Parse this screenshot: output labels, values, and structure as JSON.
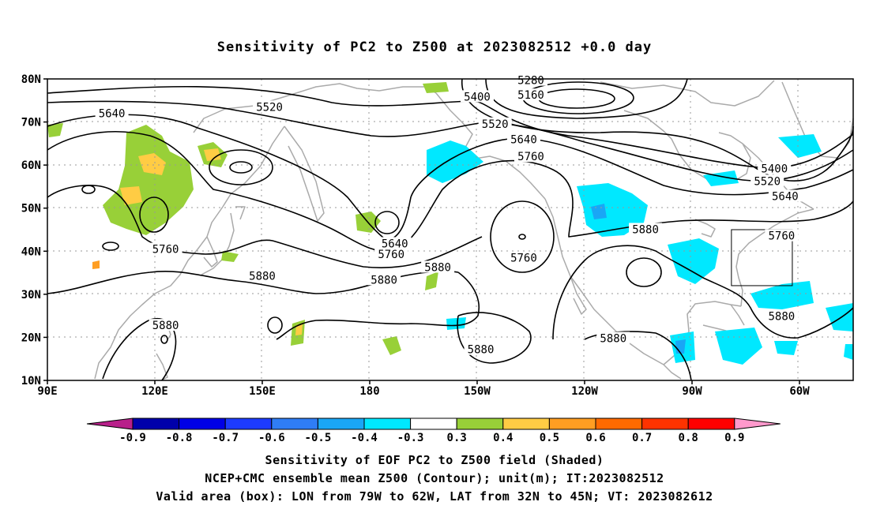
{
  "title": "Sensitivity of PC2 to Z500 at 2023082512 +0.0 day",
  "map": {
    "lat_labels": [
      "80N",
      "70N",
      "60N",
      "50N",
      "40N",
      "30N",
      "20N",
      "10N"
    ],
    "lon_labels": [
      "90E",
      "120E",
      "150E",
      "180",
      "150W",
      "120W",
      "90W",
      "60W"
    ],
    "contour_labels": [
      {
        "text": "5280",
        "lon": -135,
        "lat": 79.7
      },
      {
        "text": "5160",
        "lon": -135,
        "lat": 76.3
      },
      {
        "text": "5400",
        "lon": -150,
        "lat": 75.9
      },
      {
        "text": "5520",
        "lon": 152,
        "lat": 73.5
      },
      {
        "text": "5520",
        "lon": -145,
        "lat": 69.6
      },
      {
        "text": "5640",
        "lon": 108,
        "lat": 72.0
      },
      {
        "text": "5640",
        "lon": -137,
        "lat": 66.0
      },
      {
        "text": "5760",
        "lon": -135,
        "lat": 62.0
      },
      {
        "text": "5400",
        "lon": -67,
        "lat": 59.2
      },
      {
        "text": "5520",
        "lon": -69,
        "lat": 56.3
      },
      {
        "text": "5640",
        "lon": -64,
        "lat": 52.8
      },
      {
        "text": "5760",
        "lon": -65,
        "lat": 43.6
      },
      {
        "text": "5880",
        "lon": -103,
        "lat": 45.1
      },
      {
        "text": "5640",
        "lon": -173,
        "lat": 41.8
      },
      {
        "text": "5760",
        "lon": -174,
        "lat": 39.3
      },
      {
        "text": "5760",
        "lon": -137,
        "lat": 38.5
      },
      {
        "text": "5760",
        "lon": 123,
        "lat": 40.5
      },
      {
        "text": "5880",
        "lon": 150,
        "lat": 34.3
      },
      {
        "text": "5880",
        "lon": -176,
        "lat": 33.4
      },
      {
        "text": "5880",
        "lon": -161,
        "lat": 36.3
      },
      {
        "text": "5880",
        "lon": -65,
        "lat": 24.9
      },
      {
        "text": "5880",
        "lon": -149,
        "lat": 17.2
      },
      {
        "text": "5880",
        "lon": -112,
        "lat": 19.8
      },
      {
        "text": "5880",
        "lon": 123,
        "lat": 22.8
      }
    ],
    "valid_box": {
      "lon_min": -79,
      "lon_max": -62,
      "lat_min": 32,
      "lat_max": 45
    }
  },
  "colorbar": {
    "labels": [
      "-0.9",
      "-0.8",
      "-0.7",
      "-0.6",
      "-0.5",
      "-0.4",
      "-0.3",
      "0.3",
      "0.4",
      "0.5",
      "0.6",
      "0.7",
      "0.8",
      "0.9"
    ],
    "colors": [
      "#0000aa",
      "#0000e6",
      "#1d3bff",
      "#2f7df5",
      "#1aa6f5",
      "#00e8ff",
      "#ffffff",
      "#98d038",
      "#ffcc44",
      "#ff9e22",
      "#ff6a00",
      "#ff3300",
      "#ff0000"
    ],
    "low_arrow_color": "#b8208a",
    "high_arrow_color": "#ff99cc"
  },
  "footer": {
    "line1": "Sensitivity of EOF PC2 to Z500 field (Shaded)",
    "line2": "NCEP+CMC ensemble mean Z500 (Contour); unit(m); IT:2023082512",
    "line3": "Valid area (box): LON from 79W to 62W, LAT from 32N to 45N; VT: 2023082612"
  }
}
